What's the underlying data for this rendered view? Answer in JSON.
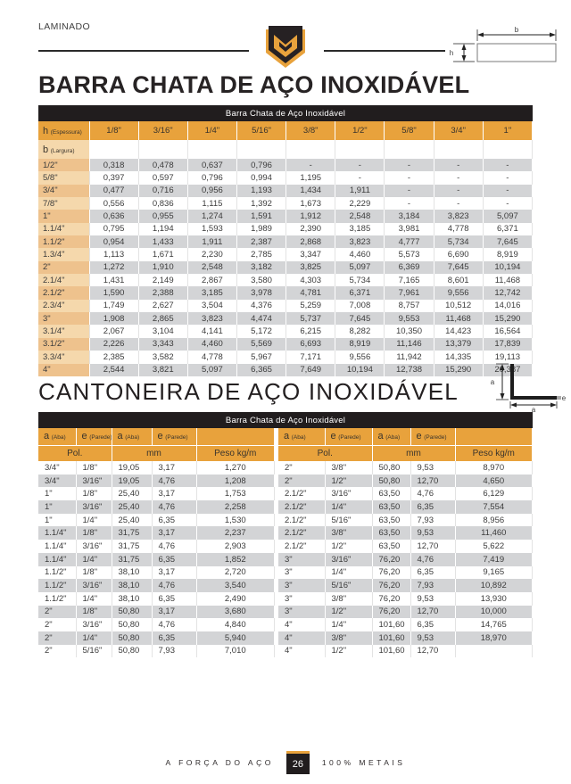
{
  "page": {
    "category": "LAMINADO",
    "footer_left": "A FORÇA DO AÇO",
    "page_number": "26",
    "footer_right": "100% METAIS"
  },
  "colors": {
    "gold": "#e8a23c",
    "tan_dark": "#eec28d",
    "tan_light": "#f5d8ac",
    "row_gray": "#d3d4d6",
    "bar_black": "#211d1e"
  },
  "diagram_labels": {
    "b": "b",
    "h": "h",
    "a_vert": "a",
    "a_horiz": "a",
    "e": "e"
  },
  "flat_bar": {
    "title": "BARRA CHATA DE AÇO INOXIDÁVEL",
    "table_caption": "Barra Chata de Aço Inoxidável",
    "corner_letter": "h",
    "corner_sub": "(Espessura)",
    "row_letter": "b",
    "row_sub": "(Largura)",
    "thickness_headers": [
      "1/8\"",
      "3/16\"",
      "1/4\"",
      "5/16\"",
      "3/8\"",
      "1/2\"",
      "5/8\"",
      "3/4\"",
      "1\""
    ],
    "rows": [
      [
        "1/2\"",
        "0,318",
        "0,478",
        "0,637",
        "0,796",
        "-",
        "-",
        "-",
        "-",
        "-"
      ],
      [
        "5/8\"",
        "0,397",
        "0,597",
        "0,796",
        "0,994",
        "1,195",
        "-",
        "-",
        "-",
        "-"
      ],
      [
        "3/4\"",
        "0,477",
        "0,716",
        "0,956",
        "1,193",
        "1,434",
        "1,911",
        "-",
        "-",
        "-"
      ],
      [
        "7/8\"",
        "0,556",
        "0,836",
        "1,115",
        "1,392",
        "1,673",
        "2,229",
        "-",
        "-",
        "-"
      ],
      [
        "1\"",
        "0,636",
        "0,955",
        "1,274",
        "1,591",
        "1,912",
        "2,548",
        "3,184",
        "3,823",
        "5,097"
      ],
      [
        "1.1/4\"",
        "0,795",
        "1,194",
        "1,593",
        "1,989",
        "2,390",
        "3,185",
        "3,981",
        "4,778",
        "6,371"
      ],
      [
        "1.1/2\"",
        "0,954",
        "1,433",
        "1,911",
        "2,387",
        "2,868",
        "3,823",
        "4,777",
        "5,734",
        "7,645"
      ],
      [
        "1.3/4\"",
        "1,113",
        "1,671",
        "2,230",
        "2,785",
        "3,347",
        "4,460",
        "5,573",
        "6,690",
        "8,919"
      ],
      [
        "2\"",
        "1,272",
        "1,910",
        "2,548",
        "3,182",
        "3,825",
        "5,097",
        "6,369",
        "7,645",
        "10,194"
      ],
      [
        "2.1/4\"",
        "1,431",
        "2,149",
        "2,867",
        "3,580",
        "4,303",
        "5,734",
        "7,165",
        "8,601",
        "11,468"
      ],
      [
        "2.1/2\"",
        "1,590",
        "2,388",
        "3,185",
        "3,978",
        "4,781",
        "6,371",
        "7,961",
        "9,556",
        "12,742"
      ],
      [
        "2.3/4\"",
        "1,749",
        "2,627",
        "3,504",
        "4,376",
        "5,259",
        "7,008",
        "8,757",
        "10,512",
        "14,016"
      ],
      [
        "3\"",
        "1,908",
        "2,865",
        "3,823",
        "4,474",
        "5,737",
        "7,645",
        "9,553",
        "11,468",
        "15,290"
      ],
      [
        "3.1/4\"",
        "2,067",
        "3,104",
        "4,141",
        "5,172",
        "6,215",
        "8,282",
        "10,350",
        "14,423",
        "16,564"
      ],
      [
        "3.1/2\"",
        "2,226",
        "3,343",
        "4,460",
        "5,569",
        "6,693",
        "8,919",
        "11,146",
        "13,379",
        "17,839"
      ],
      [
        "3.3/4\"",
        "2,385",
        "3,582",
        "4,778",
        "5,967",
        "7,171",
        "9,556",
        "11,942",
        "14,335",
        "19,113"
      ],
      [
        "4\"",
        "2,544",
        "3,821",
        "5,097",
        "6,365",
        "7,649",
        "10,194",
        "12,738",
        "15,290",
        "20,387"
      ]
    ]
  },
  "angle": {
    "title": "CANTONEIRA DE AÇO INOXIDÁVEL",
    "table_caption": "Barra Chata de Aço Inoxidável",
    "header": {
      "a_letter": "a",
      "a_sub": "(Aba)",
      "e_letter": "e",
      "e_sub": "(Parede)",
      "pol": "Pol.",
      "mm": "mm",
      "peso": "Peso kg/m"
    },
    "left_rows": [
      [
        "3/4\"",
        "1/8\"",
        "19,05",
        "3,17",
        "1,270"
      ],
      [
        "3/4\"",
        "3/16\"",
        "19,05",
        "4,76",
        "1,208"
      ],
      [
        "1\"",
        "1/8\"",
        "25,40",
        "3,17",
        "1,753"
      ],
      [
        "1\"",
        "3/16\"",
        "25,40",
        "4,76",
        "2,258"
      ],
      [
        "1\"",
        "1/4\"",
        "25,40",
        "6,35",
        "1,530"
      ],
      [
        "1.1/4\"",
        "1/8\"",
        "31,75",
        "3,17",
        "2,237"
      ],
      [
        "1.1/4\"",
        "3/16\"",
        "31,75",
        "4,76",
        "2,903"
      ],
      [
        "1.1/4\"",
        "1/4\"",
        "31,75",
        "6,35",
        "1,852"
      ],
      [
        "1.1/2\"",
        "1/8\"",
        "38,10",
        "3,17",
        "2,720"
      ],
      [
        "1.1/2\"",
        "3/16\"",
        "38,10",
        "4,76",
        "3,540"
      ],
      [
        "1.1/2\"",
        "1/4\"",
        "38,10",
        "6,35",
        "2,490"
      ],
      [
        "2\"",
        "1/8\"",
        "50,80",
        "3,17",
        "3,680"
      ],
      [
        "2\"",
        "3/16\"",
        "50,80",
        "4,76",
        "4,840"
      ],
      [
        "2\"",
        "1/4\"",
        "50,80",
        "6,35",
        "5,940"
      ],
      [
        "2\"",
        "5/16\"",
        "50,80",
        "7,93",
        "7,010"
      ]
    ],
    "right_rows": [
      [
        "2\"",
        "3/8\"",
        "50,80",
        "9,53",
        "8,970"
      ],
      [
        "2\"",
        "1/2\"",
        "50,80",
        "12,70",
        "4,650"
      ],
      [
        "2.1/2\"",
        "3/16\"",
        "63,50",
        "4,76",
        "6,129"
      ],
      [
        "2.1/2\"",
        "1/4\"",
        "63,50",
        "6,35",
        "7,554"
      ],
      [
        "2.1/2\"",
        "5/16\"",
        "63,50",
        "7,93",
        "8,956"
      ],
      [
        "2.1/2\"",
        "3/8\"",
        "63,50",
        "9,53",
        "11,460"
      ],
      [
        "2.1/2\"",
        "1/2\"",
        "63,50",
        "12,70",
        "5,622"
      ],
      [
        "3\"",
        "3/16\"",
        "76,20",
        "4,76",
        "7,419"
      ],
      [
        "3\"",
        "1/4\"",
        "76,20",
        "6,35",
        "9,165"
      ],
      [
        "3\"",
        "5/16\"",
        "76,20",
        "7,93",
        "10,892"
      ],
      [
        "3\"",
        "3/8\"",
        "76,20",
        "9,53",
        "13,930"
      ],
      [
        "3\"",
        "1/2\"",
        "76,20",
        "12,70",
        "10,000"
      ],
      [
        "4\"",
        "1/4\"",
        "101,60",
        "6,35",
        "14,765"
      ],
      [
        "4\"",
        "3/8\"",
        "101,60",
        "9,53",
        "18,970"
      ],
      [
        "4\"",
        "1/2\"",
        "101,60",
        "12,70",
        ""
      ]
    ]
  }
}
